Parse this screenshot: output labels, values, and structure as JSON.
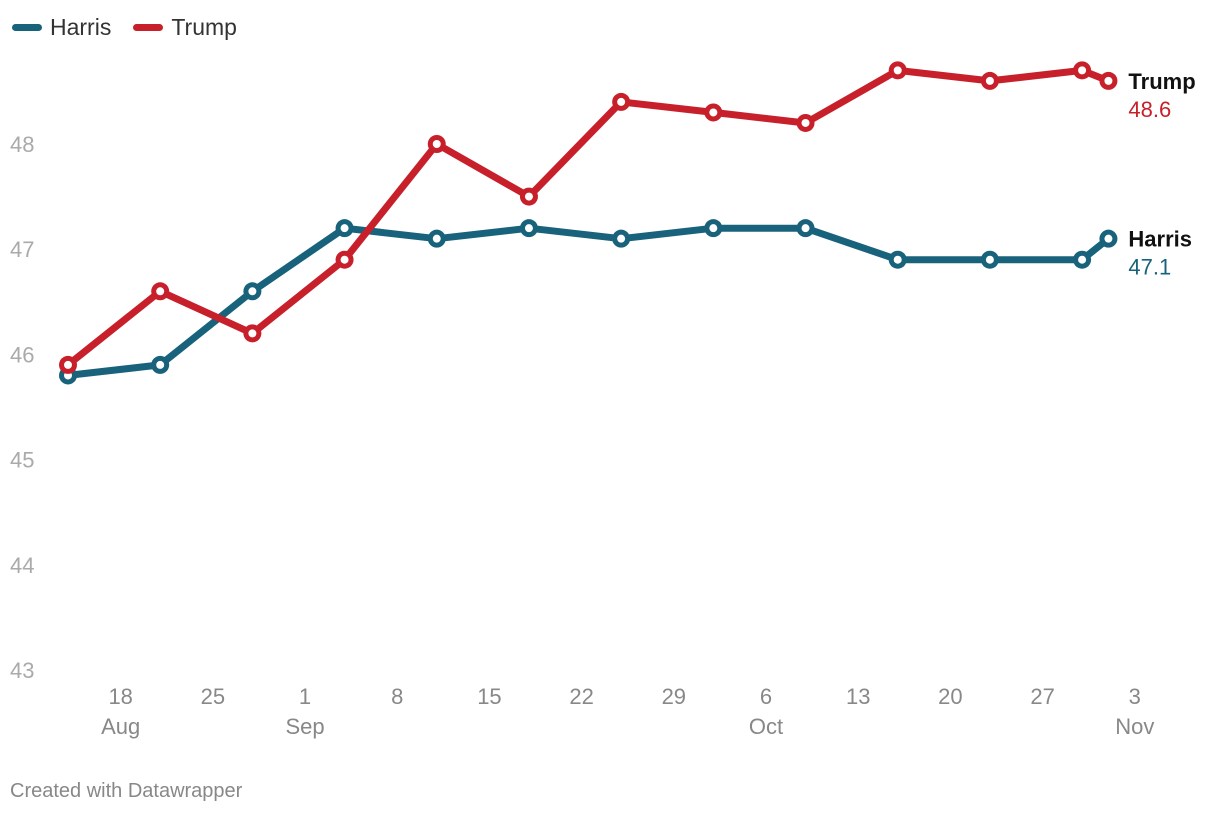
{
  "chart_data": {
    "type": "line",
    "title": "",
    "xlabel": "",
    "ylabel": "",
    "ylim": [
      43,
      49
    ],
    "yticks": [
      "43",
      "44",
      "45",
      "46",
      "47",
      "48"
    ],
    "x_day_range": [
      0,
      86
    ],
    "xticks": [
      {
        "day": 5,
        "day_label": "18",
        "month_label": "Aug"
      },
      {
        "day": 12,
        "day_label": "25",
        "month_label": ""
      },
      {
        "day": 19,
        "day_label": "1",
        "month_label": "Sep"
      },
      {
        "day": 26,
        "day_label": "8",
        "month_label": ""
      },
      {
        "day": 33,
        "day_label": "15",
        "month_label": ""
      },
      {
        "day": 40,
        "day_label": "22",
        "month_label": ""
      },
      {
        "day": 47,
        "day_label": "29",
        "month_label": ""
      },
      {
        "day": 54,
        "day_label": "6",
        "month_label": "Oct"
      },
      {
        "day": 61,
        "day_label": "13",
        "month_label": ""
      },
      {
        "day": 68,
        "day_label": "20",
        "month_label": ""
      },
      {
        "day": 75,
        "day_label": "27",
        "month_label": ""
      },
      {
        "day": 82,
        "day_label": "3",
        "month_label": "Nov"
      }
    ],
    "series": [
      {
        "name": "Harris",
        "color": "#18627c",
        "end_value_label": "47.1",
        "points": [
          {
            "day": 1,
            "value": 45.8
          },
          {
            "day": 8,
            "value": 45.9
          },
          {
            "day": 15,
            "value": 46.6
          },
          {
            "day": 22,
            "value": 47.2
          },
          {
            "day": 29,
            "value": 47.1
          },
          {
            "day": 36,
            "value": 47.2
          },
          {
            "day": 43,
            "value": 47.1
          },
          {
            "day": 50,
            "value": 47.2
          },
          {
            "day": 57,
            "value": 47.2
          },
          {
            "day": 64,
            "value": 46.9
          },
          {
            "day": 71,
            "value": 46.9
          },
          {
            "day": 78,
            "value": 46.9
          },
          {
            "day": 80,
            "value": 47.1
          }
        ]
      },
      {
        "name": "Trump",
        "color": "#c8202a",
        "end_value_label": "48.6",
        "points": [
          {
            "day": 1,
            "value": 45.9
          },
          {
            "day": 8,
            "value": 46.6
          },
          {
            "day": 15,
            "value": 46.2
          },
          {
            "day": 22,
            "value": 46.9
          },
          {
            "day": 29,
            "value": 48.0
          },
          {
            "day": 36,
            "value": 47.5
          },
          {
            "day": 43,
            "value": 48.4
          },
          {
            "day": 50,
            "value": 48.3
          },
          {
            "day": 57,
            "value": 48.2
          },
          {
            "day": 64,
            "value": 48.7
          },
          {
            "day": 71,
            "value": 48.6
          },
          {
            "day": 78,
            "value": 48.7
          },
          {
            "day": 80,
            "value": 48.6
          }
        ]
      }
    ]
  },
  "footer": {
    "credit": "Created with Datawrapper"
  }
}
